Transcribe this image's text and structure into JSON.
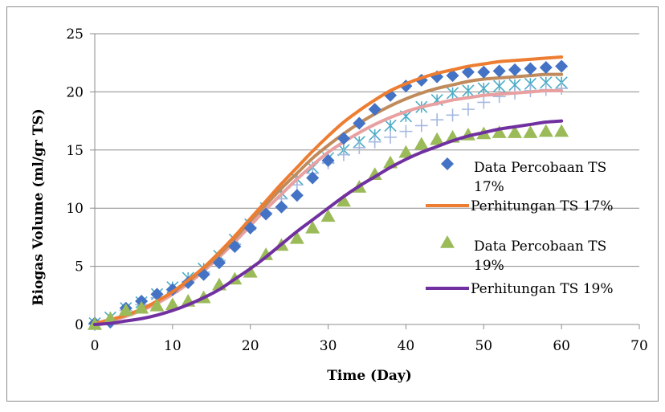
{
  "chart_data": {
    "type": "scatter",
    "xlabel": "Time (Day)",
    "ylabel": "Biogas Volume (ml/gr TS)",
    "xlim": [
      0,
      70
    ],
    "ylim": [
      0,
      25
    ],
    "x_ticks": [
      0,
      10,
      20,
      30,
      40,
      50,
      60,
      70
    ],
    "y_ticks": [
      0,
      5,
      10,
      15,
      20,
      25
    ],
    "grid": "horizontal",
    "legend_position": "right",
    "series": [
      {
        "name": "Data Percobaan TS 17%",
        "kind": "markers",
        "marker": "diamond",
        "color": "#4472C4",
        "x": [
          0,
          2,
          4,
          6,
          8,
          10,
          12,
          14,
          16,
          18,
          20,
          22,
          24,
          26,
          28,
          30,
          32,
          34,
          36,
          38,
          40,
          42,
          44,
          46,
          48,
          50,
          52,
          54,
          56,
          58,
          60
        ],
        "y": [
          0.1,
          0.2,
          1.4,
          2.0,
          2.6,
          3.0,
          3.6,
          4.3,
          5.3,
          6.7,
          8.3,
          9.5,
          10.1,
          11.1,
          12.6,
          14.1,
          16.0,
          17.3,
          18.5,
          19.7,
          20.5,
          21.0,
          21.3,
          21.4,
          21.7,
          21.7,
          21.8,
          21.9,
          22.0,
          22.1,
          22.2
        ]
      },
      {
        "name": "Perhitungan TS 17%",
        "kind": "line",
        "color": "#ED7D31",
        "x": [
          0,
          2,
          4,
          6,
          8,
          10,
          12,
          14,
          16,
          18,
          20,
          22,
          24,
          26,
          28,
          30,
          32,
          34,
          36,
          38,
          40,
          42,
          44,
          46,
          48,
          50,
          52,
          54,
          56,
          58,
          60
        ],
        "y": [
          0.1,
          0.4,
          0.8,
          1.3,
          2.0,
          2.8,
          3.8,
          4.9,
          6.2,
          7.6,
          9.1,
          10.6,
          12.1,
          13.5,
          14.9,
          16.2,
          17.4,
          18.4,
          19.3,
          20.1,
          20.7,
          21.2,
          21.6,
          21.9,
          22.2,
          22.4,
          22.6,
          22.7,
          22.8,
          22.9,
          23.0
        ]
      },
      {
        "name": "Data Percobaan TS 19%",
        "kind": "markers",
        "marker": "triangle",
        "color": "#9BBB59",
        "x": [
          0,
          2,
          4,
          6,
          8,
          10,
          12,
          14,
          16,
          18,
          20,
          22,
          24,
          26,
          28,
          30,
          32,
          34,
          36,
          38,
          40,
          42,
          44,
          46,
          48,
          50,
          52,
          54,
          56,
          58,
          60
        ],
        "y": [
          0.0,
          0.5,
          1.2,
          1.4,
          1.6,
          1.7,
          2.0,
          2.3,
          3.4,
          3.9,
          4.5,
          6.0,
          6.8,
          7.4,
          8.3,
          9.3,
          10.6,
          11.8,
          12.9,
          13.9,
          14.8,
          15.5,
          15.9,
          16.1,
          16.3,
          16.4,
          16.5,
          16.5,
          16.5,
          16.6,
          16.6
        ]
      },
      {
        "name": "Perhitungan TS 19%",
        "kind": "line",
        "color": "#7030A0",
        "x": [
          0,
          2,
          4,
          6,
          8,
          10,
          12,
          14,
          16,
          18,
          20,
          22,
          24,
          26,
          28,
          30,
          32,
          34,
          36,
          38,
          40,
          42,
          44,
          46,
          48,
          50,
          52,
          54,
          56,
          58,
          60
        ],
        "y": [
          0.0,
          0.1,
          0.3,
          0.5,
          0.8,
          1.2,
          1.7,
          2.3,
          3.0,
          3.9,
          4.8,
          5.8,
          6.9,
          8.0,
          9.0,
          10.0,
          11.0,
          11.9,
          12.7,
          13.5,
          14.2,
          14.8,
          15.3,
          15.8,
          16.2,
          16.5,
          16.8,
          17.0,
          17.2,
          17.4,
          17.5
        ]
      }
    ],
    "extra_series": [
      {
        "kind": "markers",
        "marker": "x",
        "color": "#4BACC6",
        "x": [
          0,
          2,
          4,
          6,
          8,
          10,
          12,
          14,
          16,
          18,
          20,
          22,
          24,
          26,
          28,
          30,
          32,
          34,
          36,
          38,
          40,
          42,
          44,
          46,
          48,
          50,
          52,
          54,
          56,
          58,
          60
        ],
        "y": [
          0.1,
          0.6,
          1.4,
          1.9,
          2.6,
          3.2,
          4.0,
          4.8,
          5.9,
          7.3,
          8.6,
          10.0,
          11.3,
          12.5,
          13.5,
          14.3,
          15.0,
          15.7,
          16.3,
          17.1,
          17.9,
          18.7,
          19.3,
          19.9,
          20.1,
          20.3,
          20.5,
          20.6,
          20.7,
          20.8,
          20.8
        ]
      },
      {
        "kind": "markers",
        "marker": "plus",
        "color": "#A5B8E0",
        "x": [
          0,
          2,
          4,
          6,
          8,
          10,
          12,
          14,
          16,
          18,
          20,
          22,
          24,
          26,
          28,
          30,
          32,
          34,
          36,
          38,
          40,
          42,
          44,
          46,
          48,
          50,
          52,
          54,
          56,
          58,
          60
        ],
        "y": [
          0.0,
          0.4,
          1.2,
          1.7,
          2.3,
          3.0,
          3.7,
          4.5,
          5.5,
          6.9,
          8.3,
          9.6,
          10.8,
          12.0,
          13.0,
          13.9,
          14.6,
          15.2,
          15.7,
          16.1,
          16.6,
          17.1,
          17.6,
          18.0,
          18.5,
          19.1,
          19.6,
          19.9,
          20.1,
          20.2,
          20.3
        ]
      },
      {
        "kind": "line",
        "color": "#E8A0A0",
        "x": [
          0,
          2,
          4,
          6,
          8,
          10,
          12,
          14,
          16,
          18,
          20,
          22,
          24,
          26,
          28,
          30,
          32,
          34,
          36,
          38,
          40,
          42,
          44,
          46,
          48,
          50,
          52,
          54,
          56,
          58,
          60
        ],
        "y": [
          0.0,
          0.3,
          0.7,
          1.2,
          1.8,
          2.6,
          3.5,
          4.6,
          5.8,
          7.1,
          8.5,
          9.9,
          11.2,
          12.5,
          13.7,
          14.8,
          15.7,
          16.5,
          17.2,
          17.8,
          18.3,
          18.7,
          19.0,
          19.3,
          19.5,
          19.7,
          19.8,
          19.9,
          20.0,
          20.1,
          20.1
        ]
      },
      {
        "kind": "line",
        "color": "#C08B5C",
        "x": [
          0,
          2,
          4,
          6,
          8,
          10,
          12,
          14,
          16,
          18,
          20,
          22,
          24,
          26,
          28,
          30,
          32,
          34,
          36,
          38,
          40,
          42,
          44,
          46,
          48,
          50,
          52,
          54,
          56,
          58,
          60
        ],
        "y": [
          0.1,
          0.4,
          0.8,
          1.3,
          2.0,
          2.8,
          3.7,
          4.8,
          6.0,
          7.4,
          8.9,
          10.3,
          11.7,
          13.0,
          14.3,
          15.4,
          16.4,
          17.3,
          18.1,
          18.8,
          19.4,
          19.9,
          20.3,
          20.6,
          20.9,
          21.1,
          21.2,
          21.3,
          21.4,
          21.5,
          21.5
        ]
      }
    ],
    "legend": [
      {
        "line1": "Data Percobaan TS",
        "line2": "17%",
        "series": 0
      },
      {
        "line1": "Perhitungan TS 17%",
        "line2": "",
        "series": 1
      },
      {
        "line1": "Data Percobaan TS",
        "line2": "19%",
        "series": 2
      },
      {
        "line1": "Perhitungan TS 19%",
        "line2": "",
        "series": 3
      }
    ]
  }
}
